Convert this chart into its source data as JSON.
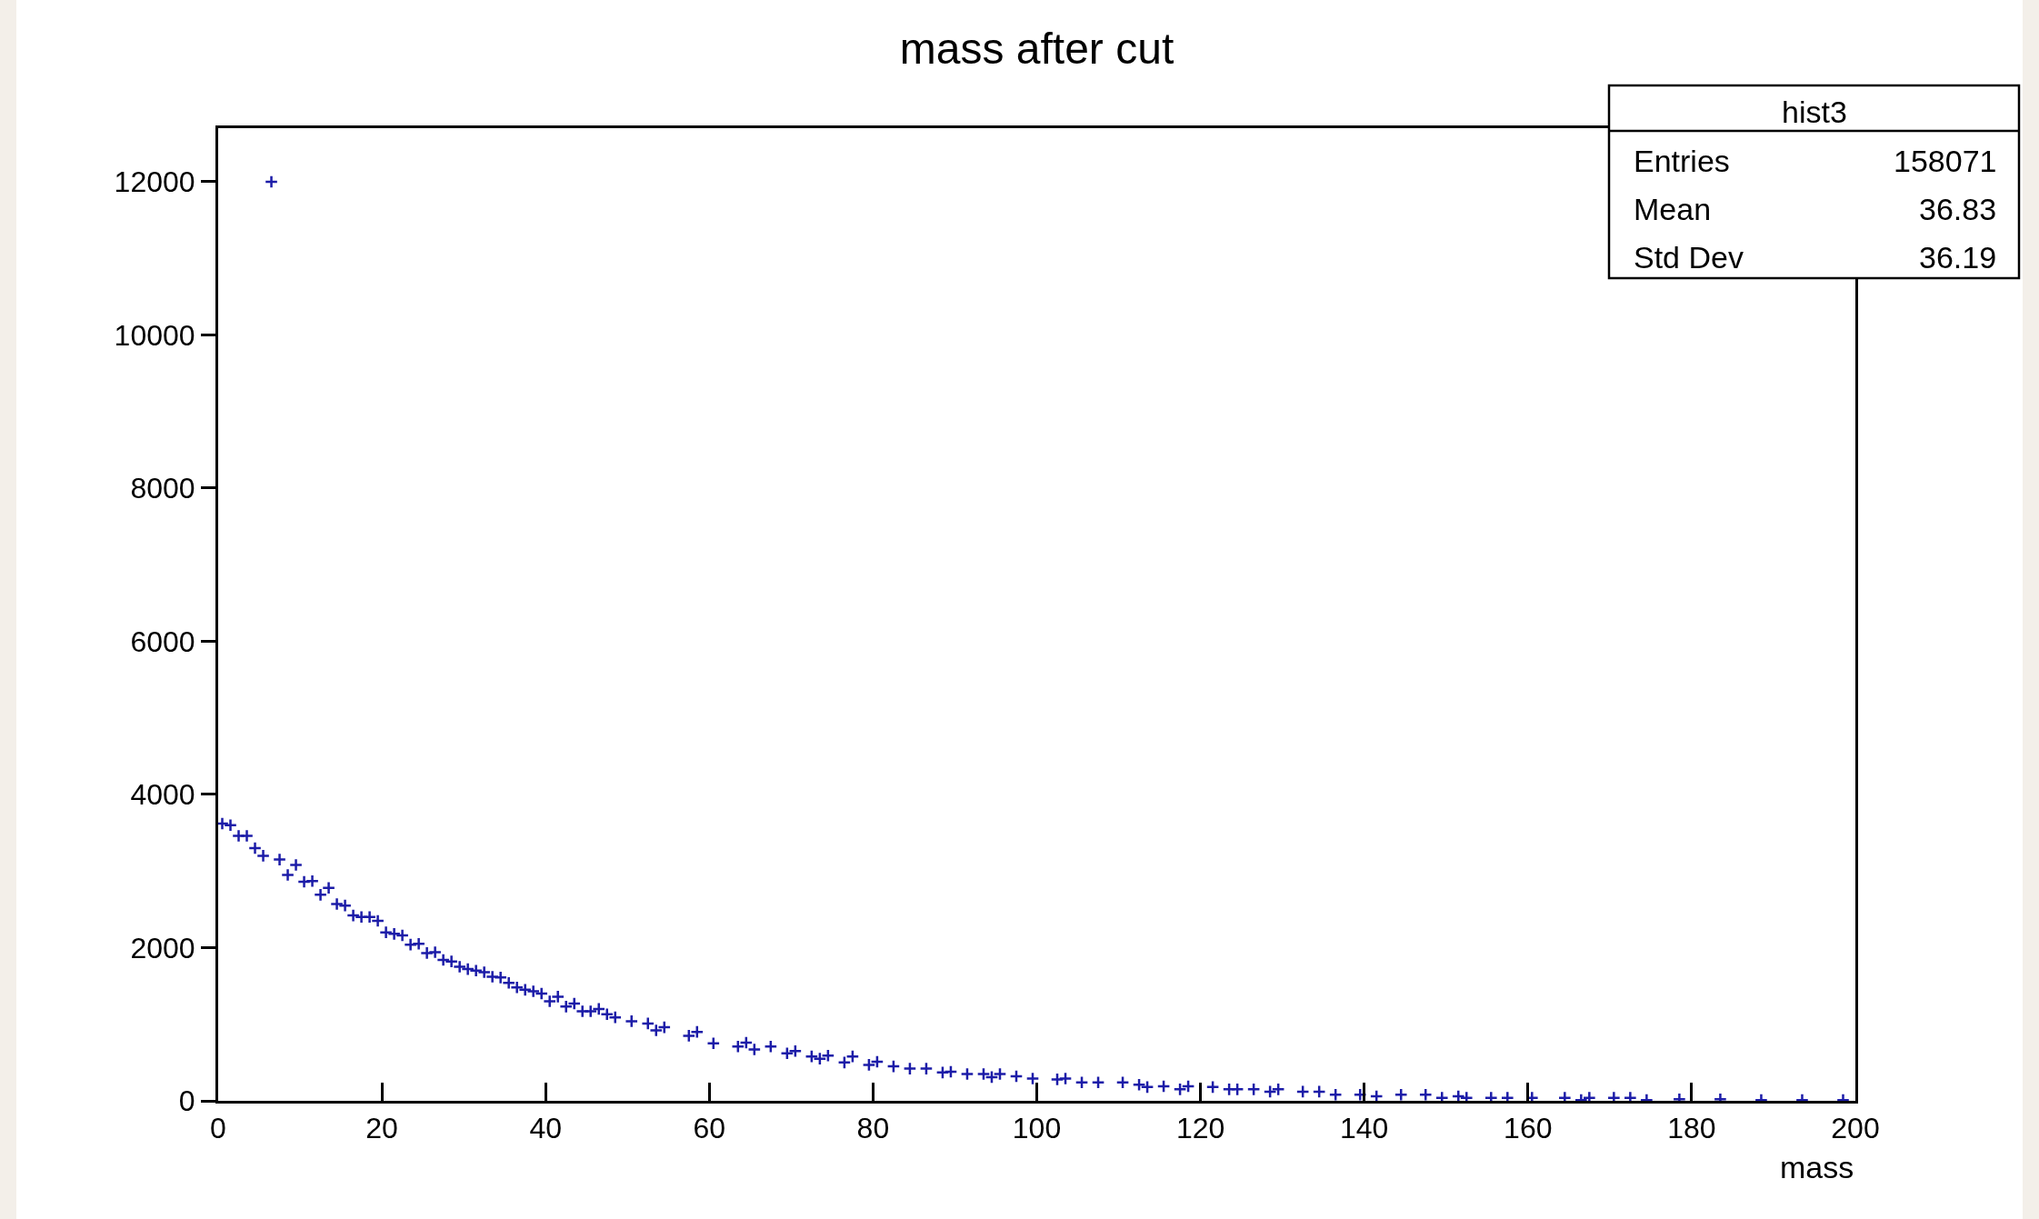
{
  "chart_data": {
    "type": "scatter",
    "title": "mass after cut",
    "xlabel": "mass",
    "annotations": [
      "hist3",
      "Entries",
      "158071",
      "Mean",
      "36.83",
      "Std Dev",
      "36.19"
    ],
    "series": [
      {
        "color": "#1c1ca8",
        "x": [
          0.5,
          1.5,
          2.5,
          3.5,
          4.5,
          5.5,
          6.5,
          7.5,
          8.5,
          9.5,
          10.5,
          11.5,
          12.5,
          13.5,
          14.5,
          15.5,
          16.5,
          17.5,
          18.5,
          19.5,
          20.5,
          21.5,
          22.5,
          23.5,
          24.5,
          25.5,
          26.5,
          27.5,
          28.5,
          29.5,
          30.5,
          31.5,
          32.5,
          33.5,
          34.5,
          35.5,
          36.5,
          37.5,
          38.5,
          39.5,
          40.5,
          41.5,
          42.5,
          43.5,
          44.5,
          45.5,
          46.5,
          47.5,
          48.5,
          50.5,
          52.5,
          53.5,
          54.5,
          57.5,
          58.5,
          60.5,
          63.5,
          64.5,
          65.5,
          67.5,
          69.5,
          70.5,
          72.5,
          73.5,
          74.5,
          76.5,
          77.5,
          79.5,
          80.5,
          82.5,
          84.5,
          86.5,
          88.5,
          89.5,
          91.5,
          93.5,
          94.5,
          95.5,
          97.5,
          99.5,
          102.5,
          103.5,
          105.5,
          107.5,
          110.5,
          112.5,
          113.5,
          115.5,
          117.5,
          118.5,
          121.5,
          123.5,
          124.5,
          126.5,
          128.5,
          129.5,
          132.5,
          134.5,
          136.5,
          139.5,
          141.5,
          144.5,
          147.5,
          149.5,
          151.5,
          152.5,
          155.5,
          157.5,
          160.5,
          164.5,
          166.5,
          167.5,
          170.5,
          172.5,
          174.5,
          178.5,
          183.5,
          188.5,
          193.5,
          198.5
        ],
        "values": [
          3620,
          3600,
          3460,
          3460,
          3300,
          3200,
          12000,
          3150,
          2950,
          3080,
          2860,
          2870,
          2690,
          2780,
          2570,
          2550,
          2420,
          2400,
          2400,
          2350,
          2200,
          2180,
          2160,
          2040,
          2050,
          1930,
          1940,
          1840,
          1820,
          1750,
          1720,
          1700,
          1680,
          1620,
          1610,
          1540,
          1480,
          1450,
          1430,
          1400,
          1300,
          1360,
          1230,
          1270,
          1170,
          1170,
          1200,
          1130,
          1090,
          1040,
          1010,
          920,
          960,
          850,
          900,
          750,
          710,
          760,
          670,
          710,
          620,
          650,
          580,
          550,
          590,
          500,
          580,
          470,
          510,
          450,
          420,
          420,
          370,
          380,
          350,
          350,
          310,
          350,
          320,
          290,
          280,
          290,
          240,
          240,
          240,
          210,
          180,
          190,
          150,
          190,
          180,
          150,
          150,
          150,
          120,
          150,
          120,
          120,
          80,
          80,
          60,
          80,
          80,
          40,
          60,
          40,
          40,
          40,
          40,
          40,
          10,
          40,
          40,
          40,
          10,
          20,
          20,
          10,
          10,
          10
        ]
      }
    ],
    "xlim": [
      0,
      200
    ],
    "xticks": [
      0,
      20,
      40,
      60,
      80,
      100,
      120,
      140,
      160,
      180,
      200
    ],
    "ylim": [
      0,
      12700
    ],
    "yticks": [
      0,
      2000,
      4000,
      6000,
      8000,
      10000,
      12000
    ],
    "marker": "cross",
    "grid": false
  }
}
